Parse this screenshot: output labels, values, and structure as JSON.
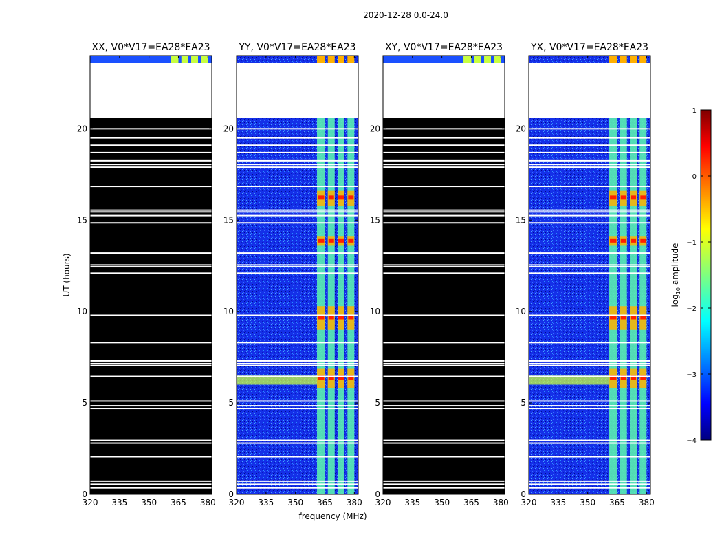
{
  "figure": {
    "suptitle": "2020-12-28 0.0-24.0",
    "xlabel": "frequency (MHz)",
    "ylabel": "UT (hours)"
  },
  "chart_data": {
    "type": "heatmap",
    "x_range": [
      320,
      382
    ],
    "y_range": [
      0,
      24
    ],
    "x_ticks": [
      "320",
      "335",
      "350",
      "365",
      "380"
    ],
    "x_tick_values": [
      320,
      335,
      350,
      365,
      380
    ],
    "y_ticks": [
      "0",
      "5",
      "10",
      "15",
      "20"
    ],
    "y_tick_values": [
      0,
      5,
      10,
      15,
      20
    ],
    "panels": [
      {
        "title": "XX, V0*V17=EA28*EA23",
        "kind": "flagged"
      },
      {
        "title": "YY, V0*V17=EA28*EA23",
        "kind": "data"
      },
      {
        "title": "XY, V0*V17=EA28*EA23",
        "kind": "flagged"
      },
      {
        "title": "YX, V0*V17=EA28*EA23",
        "kind": "data"
      }
    ],
    "no_data_hours": [
      20.6,
      23.6
    ],
    "gap_hours": [
      0.35,
      0.55,
      0.72,
      2.05,
      2.8,
      2.95,
      4.7,
      4.85,
      5.1,
      6.45,
      7.05,
      7.15,
      7.3,
      8.3,
      9.8,
      12.1,
      12.45,
      12.55,
      13.2,
      14.85,
      15.25,
      15.45,
      15.55,
      16.85,
      17.9,
      18.05,
      18.25,
      18.7,
      19.1,
      19.5,
      20.0
    ],
    "rfi_bands_mhz": [
      [
        361,
        365
      ],
      [
        366.5,
        370
      ],
      [
        371.5,
        375
      ],
      [
        376.5,
        380
      ]
    ],
    "strong_events_hours": [
      [
        5.8,
        6.9
      ],
      [
        9.0,
        10.3
      ],
      [
        13.6,
        14.1
      ],
      [
        15.8,
        16.6
      ]
    ],
    "broadband_event_hours": [
      6.0,
      6.5
    ],
    "colorbar": {
      "label": "log10 amplitude",
      "label_main": "log",
      "label_sub": "10",
      "label_rest": " amplitude",
      "range": [
        -4,
        1
      ],
      "ticks": [
        "1",
        "0",
        "−1",
        "−2",
        "−3",
        "−4"
      ],
      "tick_values": [
        1,
        0,
        -1,
        -2,
        -3,
        -4
      ],
      "colormap": "jet"
    }
  }
}
